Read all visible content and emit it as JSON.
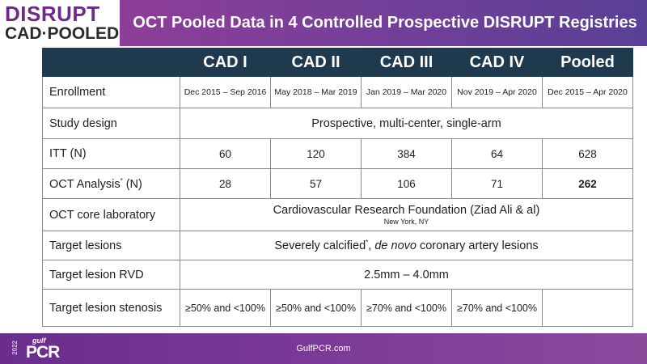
{
  "header": {
    "logo_line1": "DISRUPT",
    "logo_line2": "CAD·POOLED",
    "title": "OCT Pooled Data in 4 Controlled Prospective DISRUPT Registries"
  },
  "table": {
    "columns": [
      "CAD I",
      "CAD II",
      "CAD III",
      "CAD IV",
      "Pooled"
    ],
    "enrollment": {
      "label": "Enrollment",
      "values": [
        "Dec 2015 – Sep 2016",
        "May 2018 – Mar 2019",
        "Jan 2019 – Mar 2020",
        "Nov 2019 – Apr 2020",
        "Dec 2015 – Apr 2020"
      ]
    },
    "study_design": {
      "label": "Study design",
      "value": "Prospective, multi-center, single-arm"
    },
    "itt": {
      "label": "ITT (N)",
      "values": [
        "60",
        "120",
        "384",
        "64",
        "628"
      ]
    },
    "oct_analysis": {
      "label_pre": "OCT Analysis",
      "label_sup": "*",
      "label_post": " (N)",
      "values": [
        "28",
        "57",
        "106",
        "71",
        "262"
      ]
    },
    "core_lab": {
      "label": "OCT core laboratory",
      "value": "Cardiovascular Research Foundation (Ziad Ali & al)",
      "sub": "New York, NY"
    },
    "target_lesions": {
      "label": "Target lesions",
      "pre": "Severely calcified",
      "sup": "*",
      "mid": ", ",
      "italic": "de novo",
      "post": " coronary artery lesions"
    },
    "rvd": {
      "label": "Target lesion RVD",
      "value": "2.5mm – 4.0mm"
    },
    "stenosis": {
      "label": "Target lesion stenosis",
      "values": [
        "≥50% and <100%",
        "≥50% and <100%",
        "≥70% and <100%",
        "≥70% and <100%",
        ""
      ]
    }
  },
  "footer": {
    "year": "2022",
    "brand_small": "gulf",
    "brand": "PCR",
    "url": "GulfPCR.com"
  },
  "colors": {
    "header_purple": "#7c3f99",
    "table_header": "#1f3a4f",
    "footer_purple": "#7b3a97"
  }
}
